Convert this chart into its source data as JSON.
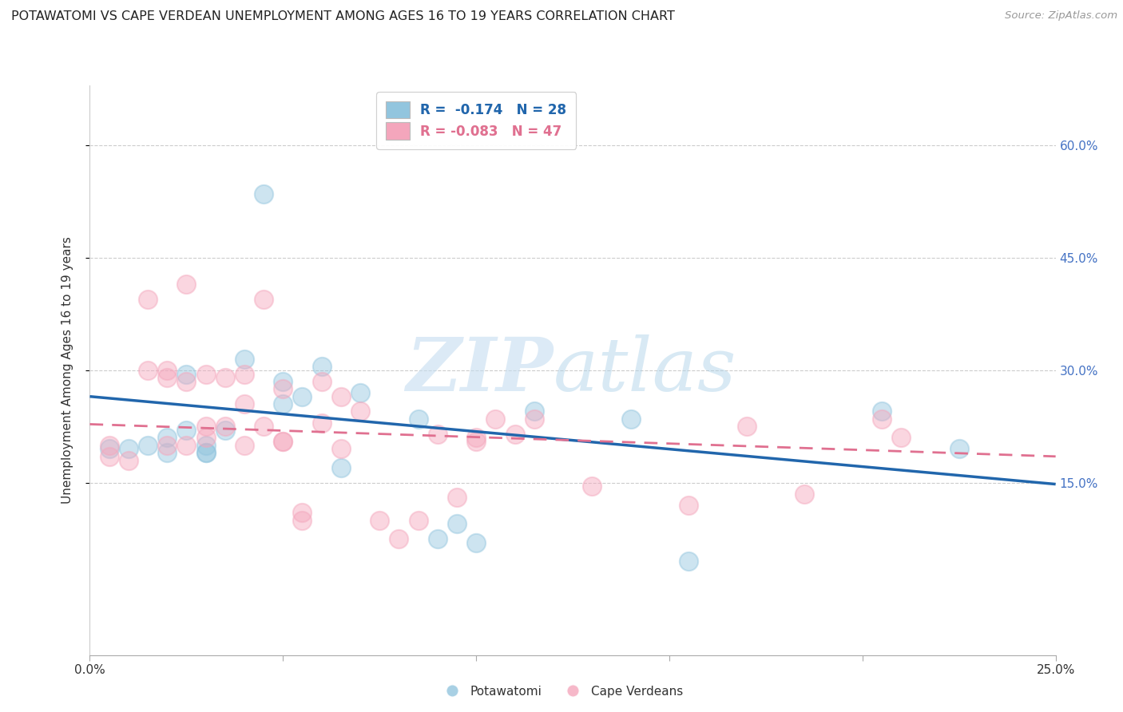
{
  "title": "POTAWATOMI VS CAPE VERDEAN UNEMPLOYMENT AMONG AGES 16 TO 19 YEARS CORRELATION CHART",
  "source": "Source: ZipAtlas.com",
  "ylabel": "Unemployment Among Ages 16 to 19 years",
  "xlim": [
    0.0,
    0.25
  ],
  "ylim": [
    -0.08,
    0.68
  ],
  "ytick_right_vals": [
    0.15,
    0.3,
    0.45,
    0.6
  ],
  "ytick_right_labels": [
    "15.0%",
    "30.0%",
    "45.0%",
    "60.0%"
  ],
  "legend_r1": "R =  -0.174   N = 28",
  "legend_r2": "R = -0.083   N = 47",
  "blue_color": "#92c5de",
  "pink_color": "#f4a6bc",
  "blue_line_color": "#2166ac",
  "pink_line_color": "#e07090",
  "watermark_zip": "ZIP",
  "watermark_atlas": "atlas",
  "potawatomi_x": [
    0.005,
    0.01,
    0.015,
    0.02,
    0.02,
    0.025,
    0.025,
    0.03,
    0.03,
    0.03,
    0.035,
    0.04,
    0.045,
    0.05,
    0.05,
    0.055,
    0.06,
    0.065,
    0.07,
    0.085,
    0.09,
    0.095,
    0.1,
    0.115,
    0.14,
    0.155,
    0.205,
    0.225
  ],
  "potawatomi_y": [
    0.195,
    0.195,
    0.2,
    0.21,
    0.19,
    0.295,
    0.22,
    0.19,
    0.2,
    0.19,
    0.22,
    0.315,
    0.535,
    0.285,
    0.255,
    0.265,
    0.305,
    0.17,
    0.27,
    0.235,
    0.075,
    0.095,
    0.07,
    0.245,
    0.235,
    0.045,
    0.245,
    0.195
  ],
  "capeverdean_x": [
    0.005,
    0.005,
    0.01,
    0.015,
    0.015,
    0.02,
    0.02,
    0.02,
    0.025,
    0.025,
    0.025,
    0.03,
    0.03,
    0.03,
    0.035,
    0.035,
    0.04,
    0.04,
    0.04,
    0.045,
    0.045,
    0.05,
    0.05,
    0.05,
    0.055,
    0.055,
    0.06,
    0.06,
    0.065,
    0.065,
    0.07,
    0.075,
    0.08,
    0.085,
    0.09,
    0.095,
    0.1,
    0.1,
    0.105,
    0.11,
    0.115,
    0.13,
    0.155,
    0.17,
    0.185,
    0.205,
    0.21
  ],
  "capeverdean_y": [
    0.2,
    0.185,
    0.18,
    0.395,
    0.3,
    0.3,
    0.29,
    0.2,
    0.415,
    0.285,
    0.2,
    0.295,
    0.225,
    0.21,
    0.29,
    0.225,
    0.295,
    0.255,
    0.2,
    0.395,
    0.225,
    0.275,
    0.205,
    0.205,
    0.1,
    0.11,
    0.285,
    0.23,
    0.265,
    0.195,
    0.245,
    0.1,
    0.075,
    0.1,
    0.215,
    0.13,
    0.205,
    0.21,
    0.235,
    0.215,
    0.235,
    0.145,
    0.12,
    0.225,
    0.135,
    0.235,
    0.21
  ],
  "blue_trendline_x": [
    0.0,
    0.25
  ],
  "blue_trendline_y": [
    0.265,
    0.148
  ],
  "pink_trendline_x": [
    0.0,
    0.25
  ],
  "pink_trendline_y": [
    0.228,
    0.185
  ]
}
